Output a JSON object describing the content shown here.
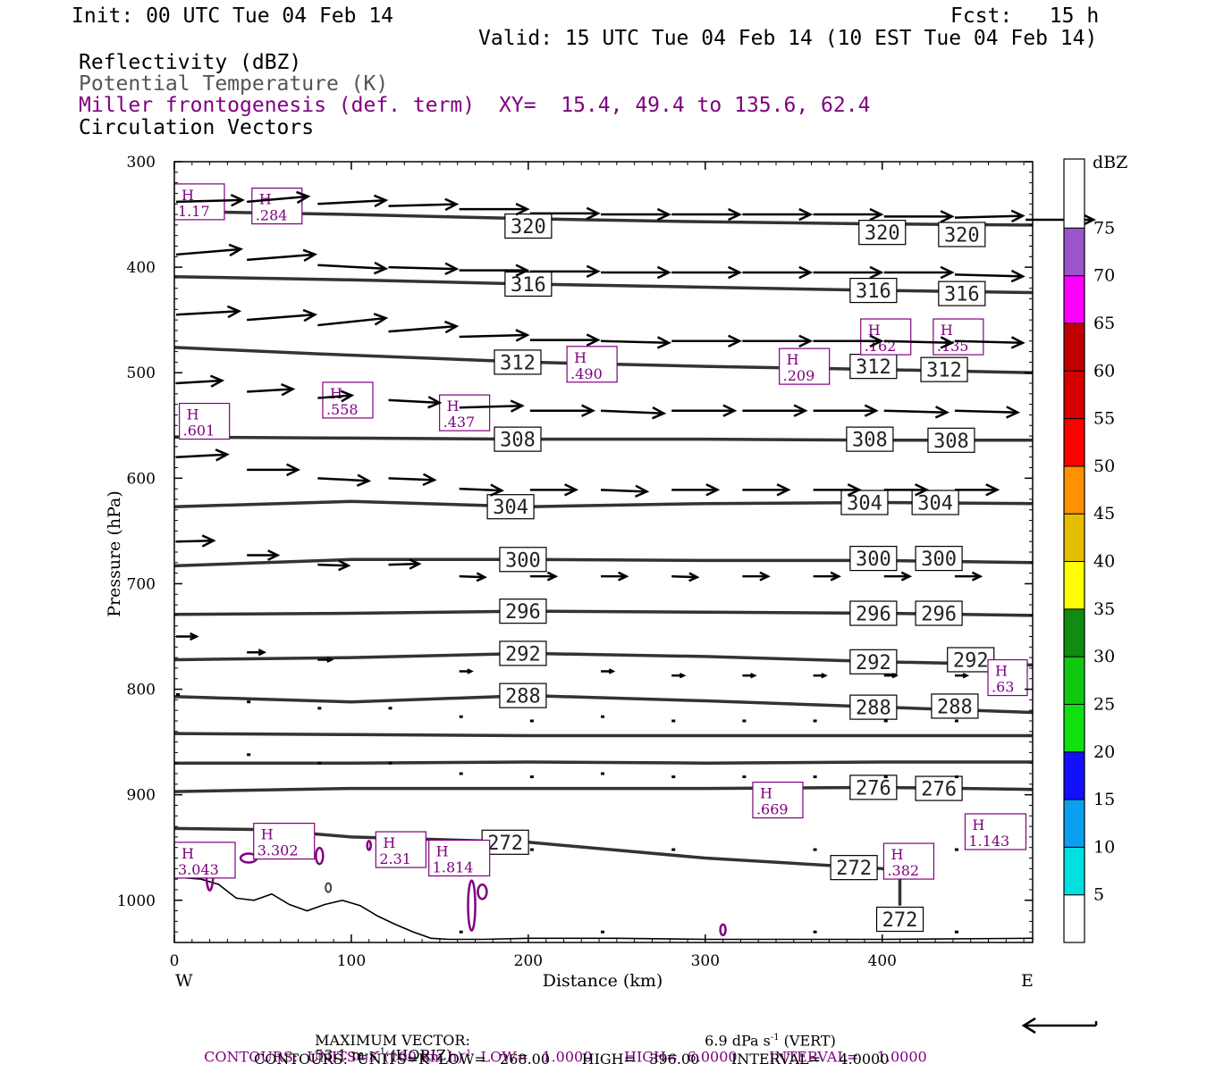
{
  "header": {
    "init": "Init: 00 UTC Tue 04 Feb 14",
    "fcst": "Fcst:   15 h",
    "valid": "Valid: 15 UTC Tue 04 Feb 14 (10 EST Tue 04 Feb 14)",
    "line_reflectivity": "Reflectivity (dBZ)",
    "line_theta": "Potential Temperature (K)",
    "line_miller": "Miller frontogenesis (def. term)",
    "line_xy": "XY=  15.4, 49.4 to 135.6, 62.4",
    "line_vectors": "Circulation Vectors"
  },
  "colors": {
    "purple": "#800080",
    "theta": "#333333",
    "vector": "#000000"
  },
  "chart_data": {
    "type": "cross-section",
    "xlabel": "Distance (km)",
    "ylabel": "Pressure (hPa)",
    "xlim": [
      0,
      485
    ],
    "ylim": [
      300,
      1040
    ],
    "x_ticks": [
      0,
      100,
      200,
      300,
      400
    ],
    "y_ticks": [
      300,
      400,
      500,
      600,
      700,
      800,
      900,
      1000
    ],
    "x_left_label": "W",
    "x_right_label": "E",
    "theta_contours": [
      {
        "label": "320",
        "points": [
          [
            0,
            347
          ],
          [
            100,
            350
          ],
          [
            200,
            354
          ],
          [
            300,
            357
          ],
          [
            400,
            359
          ],
          [
            485,
            360
          ]
        ],
        "labels_at": [
          [
            200,
            361
          ],
          [
            400,
            367
          ],
          [
            445,
            369
          ]
        ]
      },
      {
        "label": "316",
        "points": [
          [
            0,
            409
          ],
          [
            100,
            412
          ],
          [
            200,
            416
          ],
          [
            300,
            419
          ],
          [
            400,
            422
          ],
          [
            485,
            424
          ]
        ],
        "labels_at": [
          [
            200,
            416
          ],
          [
            395,
            422
          ],
          [
            445,
            425
          ]
        ]
      },
      {
        "label": "312",
        "points": [
          [
            0,
            476
          ],
          [
            80,
            482
          ],
          [
            200,
            490
          ],
          [
            300,
            494
          ],
          [
            400,
            497
          ],
          [
            485,
            500
          ]
        ],
        "labels_at": [
          [
            194,
            490
          ],
          [
            395,
            494
          ],
          [
            435,
            497
          ]
        ]
      },
      {
        "label": "308",
        "points": [
          [
            0,
            561
          ],
          [
            100,
            562
          ],
          [
            200,
            563
          ],
          [
            300,
            563
          ],
          [
            400,
            564
          ],
          [
            485,
            564
          ]
        ],
        "labels_at": [
          [
            194,
            563
          ],
          [
            393,
            563
          ],
          [
            439,
            564
          ]
        ]
      },
      {
        "label": "304",
        "points": [
          [
            0,
            627
          ],
          [
            100,
            622
          ],
          [
            200,
            627
          ],
          [
            300,
            624
          ],
          [
            400,
            623
          ],
          [
            485,
            624
          ]
        ],
        "labels_at": [
          [
            190,
            627
          ],
          [
            390,
            623
          ],
          [
            430,
            623
          ]
        ]
      },
      {
        "label": "300",
        "points": [
          [
            0,
            683
          ],
          [
            100,
            677
          ],
          [
            200,
            677
          ],
          [
            300,
            678
          ],
          [
            400,
            678
          ],
          [
            485,
            680
          ]
        ],
        "labels_at": [
          [
            197,
            677
          ],
          [
            395,
            676
          ],
          [
            432,
            676
          ]
        ]
      },
      {
        "label": "296",
        "points": [
          [
            0,
            729
          ],
          [
            100,
            728
          ],
          [
            200,
            726
          ],
          [
            300,
            727
          ],
          [
            400,
            728
          ],
          [
            485,
            730
          ]
        ],
        "labels_at": [
          [
            197,
            726
          ],
          [
            395,
            728
          ],
          [
            432,
            728
          ]
        ]
      },
      {
        "label": "292",
        "points": [
          [
            0,
            772
          ],
          [
            100,
            770
          ],
          [
            200,
            766
          ],
          [
            300,
            769
          ],
          [
            400,
            774
          ],
          [
            485,
            777
          ]
        ],
        "labels_at": [
          [
            197,
            766
          ],
          [
            395,
            774
          ],
          [
            450,
            772
          ]
        ]
      },
      {
        "label": "288",
        "points": [
          [
            0,
            807
          ],
          [
            100,
            812
          ],
          [
            200,
            806
          ],
          [
            300,
            811
          ],
          [
            400,
            817
          ],
          [
            485,
            822
          ]
        ],
        "labels_at": [
          [
            197,
            806
          ],
          [
            395,
            817
          ],
          [
            441,
            816
          ]
        ]
      },
      {
        "label": "",
        "points": [
          [
            0,
            842
          ],
          [
            100,
            843
          ],
          [
            200,
            844
          ],
          [
            300,
            844
          ],
          [
            400,
            844
          ],
          [
            485,
            844
          ]
        ],
        "labels_at": []
      },
      {
        "label": "",
        "points": [
          [
            0,
            870
          ],
          [
            100,
            870
          ],
          [
            200,
            869
          ],
          [
            300,
            870
          ],
          [
            400,
            869
          ],
          [
            485,
            869
          ]
        ],
        "labels_at": []
      },
      {
        "label": "276",
        "points": [
          [
            0,
            897
          ],
          [
            100,
            894
          ],
          [
            200,
            894
          ],
          [
            300,
            894
          ],
          [
            400,
            893
          ],
          [
            485,
            895
          ]
        ],
        "labels_at": [
          [
            395,
            893
          ],
          [
            432,
            894
          ]
        ]
      },
      {
        "label": "272",
        "points": [
          [
            0,
            932
          ],
          [
            50,
            933
          ],
          [
            100,
            940
          ],
          [
            200,
            945
          ],
          [
            300,
            960
          ],
          [
            400,
            970
          ],
          [
            410,
            975
          ],
          [
            410,
            1005
          ]
        ],
        "labels_at": [
          [
            187,
            945
          ],
          [
            384,
            969
          ],
          [
            410,
            1018
          ]
        ]
      }
    ],
    "terrain_profile": [
      [
        0,
        978
      ],
      [
        15,
        980
      ],
      [
        25,
        985
      ],
      [
        35,
        998
      ],
      [
        45,
        1000
      ],
      [
        55,
        994
      ],
      [
        65,
        1004
      ],
      [
        75,
        1010
      ],
      [
        85,
        1004
      ],
      [
        95,
        1000
      ],
      [
        105,
        1005
      ],
      [
        115,
        1015
      ],
      [
        125,
        1023
      ],
      [
        135,
        1030
      ],
      [
        145,
        1036
      ],
      [
        155,
        1037
      ],
      [
        165,
        1037
      ],
      [
        175,
        1037
      ],
      [
        200,
        1036
      ],
      [
        250,
        1036
      ],
      [
        300,
        1037
      ],
      [
        350,
        1037
      ],
      [
        400,
        1037
      ],
      [
        485,
        1036
      ]
    ],
    "miller_highs": [
      {
        "x": 8,
        "p": 338,
        "value": "1.17"
      },
      {
        "x": 58,
        "p": 342,
        "value": ".284"
      },
      {
        "x": 402,
        "p": 466,
        "value": ".162"
      },
      {
        "x": 443,
        "p": 466,
        "value": ".135"
      },
      {
        "x": 236,
        "p": 492,
        "value": ".490"
      },
      {
        "x": 356,
        "p": 494,
        "value": ".209"
      },
      {
        "x": 98,
        "p": 526,
        "value": ".558"
      },
      {
        "x": 164,
        "p": 538,
        "value": ".437"
      },
      {
        "x": 17,
        "p": 546,
        "value": ".601"
      },
      {
        "x": 477,
        "p": 789,
        "value": ".63"
      },
      {
        "x": 341,
        "p": 905,
        "value": ".669"
      },
      {
        "x": 464,
        "p": 935,
        "value": "1.143"
      },
      {
        "x": 62,
        "p": 944,
        "value": "3.302"
      },
      {
        "x": 128,
        "p": 952,
        "value": "2.31"
      },
      {
        "x": 6,
        "p": 962,
        "value": "3.043"
      },
      {
        "x": 161,
        "p": 960,
        "value": "1.814"
      },
      {
        "x": 415,
        "p": 963,
        "value": ".382"
      }
    ],
    "vectors": [
      {
        "x": 0,
        "p": 338,
        "u": 39,
        "w": 0.2
      },
      {
        "x": 40,
        "p": 338,
        "u": 36,
        "w": 0.6
      },
      {
        "x": 80,
        "p": 340,
        "u": 40,
        "w": 0.4
      },
      {
        "x": 120,
        "p": 342,
        "u": 40,
        "w": 0.2
      },
      {
        "x": 160,
        "p": 345,
        "u": 40,
        "w": 0
      },
      {
        "x": 200,
        "p": 349,
        "u": 40,
        "w": 0
      },
      {
        "x": 240,
        "p": 350,
        "u": 40,
        "w": 0
      },
      {
        "x": 280,
        "p": 350,
        "u": 40,
        "w": 0
      },
      {
        "x": 320,
        "p": 350,
        "u": 40,
        "w": 0
      },
      {
        "x": 360,
        "p": 350,
        "u": 40,
        "w": 0
      },
      {
        "x": 400,
        "p": 352,
        "u": 40,
        "w": 0
      },
      {
        "x": 440,
        "p": 353,
        "u": 40,
        "w": 0.2
      },
      {
        "x": 480,
        "p": 355,
        "u": 40,
        "w": 0
      },
      {
        "x": 0,
        "p": 388,
        "u": 38,
        "w": 0.6
      },
      {
        "x": 40,
        "p": 393,
        "u": 40,
        "w": 0.6
      },
      {
        "x": 80,
        "p": 398,
        "u": 40,
        "w": -0.4
      },
      {
        "x": 120,
        "p": 400,
        "u": 40,
        "w": -0.2
      },
      {
        "x": 160,
        "p": 403,
        "u": 40,
        "w": 0
      },
      {
        "x": 200,
        "p": 404,
        "u": 40,
        "w": 0
      },
      {
        "x": 240,
        "p": 405,
        "u": 40,
        "w": 0
      },
      {
        "x": 280,
        "p": 405,
        "u": 40,
        "w": 0
      },
      {
        "x": 320,
        "p": 405,
        "u": 40,
        "w": 0
      },
      {
        "x": 360,
        "p": 405,
        "u": 40,
        "w": 0
      },
      {
        "x": 400,
        "p": 405,
        "u": 40,
        "w": 0
      },
      {
        "x": 440,
        "p": 407,
        "u": 40,
        "w": -0.2
      },
      {
        "x": 0,
        "p": 445,
        "u": 37,
        "w": 0.4
      },
      {
        "x": 40,
        "p": 450,
        "u": 40,
        "w": 0.6
      },
      {
        "x": 80,
        "p": 455,
        "u": 40,
        "w": 0.8
      },
      {
        "x": 120,
        "p": 461,
        "u": 40,
        "w": 0.6
      },
      {
        "x": 160,
        "p": 466,
        "u": 40,
        "w": 0.2
      },
      {
        "x": 200,
        "p": 469,
        "u": 40,
        "w": 0
      },
      {
        "x": 240,
        "p": 470,
        "u": 40,
        "w": -0.2
      },
      {
        "x": 280,
        "p": 470,
        "u": 40,
        "w": 0
      },
      {
        "x": 320,
        "p": 470,
        "u": 40,
        "w": 0
      },
      {
        "x": 360,
        "p": 470,
        "u": 40,
        "w": 0
      },
      {
        "x": 400,
        "p": 470,
        "u": 40,
        "w": -0.2
      },
      {
        "x": 440,
        "p": 470,
        "u": 40,
        "w": -0.2
      },
      {
        "x": 0,
        "p": 510,
        "u": 27,
        "w": 0.3
      },
      {
        "x": 40,
        "p": 518,
        "u": 27,
        "w": 0.3
      },
      {
        "x": 80,
        "p": 524,
        "u": 20,
        "w": 0.3
      },
      {
        "x": 120,
        "p": 526,
        "u": 30,
        "w": -0.3
      },
      {
        "x": 160,
        "p": 533,
        "u": 37,
        "w": 0.2
      },
      {
        "x": 200,
        "p": 536,
        "u": 37,
        "w": 0
      },
      {
        "x": 240,
        "p": 536,
        "u": 37,
        "w": -0.3
      },
      {
        "x": 280,
        "p": 536,
        "u": 37,
        "w": 0
      },
      {
        "x": 320,
        "p": 536,
        "u": 37,
        "w": 0
      },
      {
        "x": 360,
        "p": 536,
        "u": 37,
        "w": 0
      },
      {
        "x": 400,
        "p": 536,
        "u": 37,
        "w": -0.2
      },
      {
        "x": 440,
        "p": 536,
        "u": 37,
        "w": -0.2
      },
      {
        "x": 0,
        "p": 580,
        "u": 30,
        "w": 0.3
      },
      {
        "x": 40,
        "p": 592,
        "u": 30,
        "w": 0
      },
      {
        "x": 80,
        "p": 600,
        "u": 30,
        "w": -0.3
      },
      {
        "x": 120,
        "p": 600,
        "u": 27,
        "w": -0.2
      },
      {
        "x": 160,
        "p": 610,
        "u": 25,
        "w": -0.2
      },
      {
        "x": 200,
        "p": 611,
        "u": 27,
        "w": 0
      },
      {
        "x": 240,
        "p": 611,
        "u": 27,
        "w": -0.2
      },
      {
        "x": 280,
        "p": 611,
        "u": 27,
        "w": 0
      },
      {
        "x": 320,
        "p": 611,
        "u": 27,
        "w": 0
      },
      {
        "x": 360,
        "p": 611,
        "u": 27,
        "w": 0
      },
      {
        "x": 400,
        "p": 611,
        "u": 25,
        "w": 0
      },
      {
        "x": 440,
        "p": 611,
        "u": 25,
        "w": 0
      },
      {
        "x": 0,
        "p": 660,
        "u": 22,
        "w": 0.1
      },
      {
        "x": 40,
        "p": 673,
        "u": 18,
        "w": 0
      },
      {
        "x": 80,
        "p": 682,
        "u": 18,
        "w": -0.1
      },
      {
        "x": 120,
        "p": 682,
        "u": 18,
        "w": 0.1
      },
      {
        "x": 160,
        "p": 693,
        "u": 15,
        "w": -0.1
      },
      {
        "x": 200,
        "p": 693,
        "u": 15,
        "w": 0
      },
      {
        "x": 240,
        "p": 693,
        "u": 15,
        "w": 0
      },
      {
        "x": 280,
        "p": 693,
        "u": 15,
        "w": -0.1
      },
      {
        "x": 320,
        "p": 693,
        "u": 15,
        "w": 0
      },
      {
        "x": 360,
        "p": 693,
        "u": 15,
        "w": 0
      },
      {
        "x": 400,
        "p": 693,
        "u": 15,
        "w": 0
      },
      {
        "x": 440,
        "p": 693,
        "u": 15,
        "w": 0
      },
      {
        "x": 0,
        "p": 750,
        "u": 12,
        "w": 0
      },
      {
        "x": 40,
        "p": 765,
        "u": 10,
        "w": 0
      },
      {
        "x": 80,
        "p": 772,
        "u": 8,
        "w": 0
      },
      {
        "x": 160,
        "p": 783,
        "u": 7,
        "w": 0
      },
      {
        "x": 240,
        "p": 783,
        "u": 7,
        "w": 0
      },
      {
        "x": 280,
        "p": 787,
        "u": 7,
        "w": 0
      },
      {
        "x": 320,
        "p": 787,
        "u": 7,
        "w": 0
      },
      {
        "x": 360,
        "p": 787,
        "u": 7,
        "w": 0
      },
      {
        "x": 400,
        "p": 787,
        "u": 7,
        "w": 0
      },
      {
        "x": 440,
        "p": 787,
        "u": 7,
        "w": 0
      }
    ],
    "colorbar": {
      "title": "dBZ",
      "levels": [
        "5",
        "10",
        "15",
        "20",
        "25",
        "30",
        "35",
        "40",
        "45",
        "50",
        "55",
        "60",
        "65",
        "70",
        "75"
      ],
      "colors": [
        "#ffffff",
        "#00e0e0",
        "#0aa0f0",
        "#1010ff",
        "#10e010",
        "#10c810",
        "#108c10",
        "#ffff00",
        "#e6be00",
        "#ff9000",
        "#ff0000",
        "#d60000",
        "#c00000",
        "#ff00ff",
        "#9955c9"
      ]
    }
  },
  "footer": {
    "max_vector_label": "MAXIMUM VECTOR:",
    "max_vector_horiz": "53.1 m s",
    "max_vector_horiz_exp": "-1",
    "max_vector_horiz_tail": " (HORIZ)",
    "max_vector_vert": "6.9 dPa s",
    "max_vector_vert_exp": "-1",
    "max_vector_vert_tail": " (VERT)",
    "contours1_a": "CONTOURS:  UNITS=K (100 km h)",
    "contours1_exp": "-1",
    "contours1_b": "  LOW=   1.0000       HIGH=  6.0000       INTERVAL=    1.0000",
    "contours2": "CONTOURS:  UNITS=K  LOW=   268.00       HIGH=   396.00       INTERVAL=    4.0000"
  }
}
